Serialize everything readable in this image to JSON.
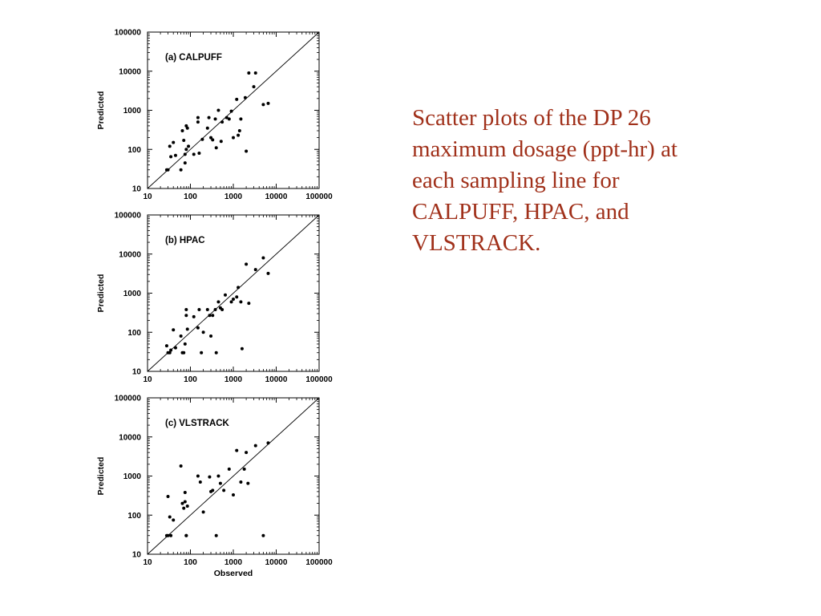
{
  "caption": "Scatter plots of the DP 26 maximum dosage (ppt-hr) at each sampling line for CALPUFF, HPAC, and VLSTRACK.",
  "colors": {
    "caption": "#a0301a",
    "points": "#000000",
    "axes": "#000000"
  },
  "chart_data": [
    {
      "type": "scatter",
      "title": "(a) CALPUFF",
      "xlabel": "",
      "ylabel": "Predicted",
      "xscale": "log",
      "yscale": "log",
      "xlim": [
        10,
        100000
      ],
      "ylim": [
        10,
        100000
      ],
      "tick_labels": [
        "10",
        "100",
        "1000",
        "10000",
        "100000"
      ],
      "reference_line": "1:1",
      "grid": false,
      "x": [
        28,
        30,
        33,
        35,
        40,
        45,
        60,
        65,
        70,
        75,
        75,
        80,
        80,
        85,
        90,
        120,
        150,
        150,
        160,
        190,
        250,
        270,
        300,
        330,
        380,
        400,
        450,
        520,
        550,
        700,
        800,
        900,
        1000,
        1200,
        1300,
        1400,
        1500,
        1900,
        2000,
        2300,
        3000,
        3300,
        5000,
        6500
      ],
      "y": [
        30,
        30,
        120,
        65,
        150,
        70,
        30,
        300,
        170,
        45,
        75,
        100,
        400,
        350,
        120,
        75,
        500,
        650,
        80,
        180,
        350,
        650,
        200,
        175,
        600,
        110,
        1000,
        160,
        500,
        650,
        600,
        950,
        200,
        1900,
        230,
        300,
        600,
        2100,
        90,
        9000,
        4000,
        9000,
        1400,
        1500
      ]
    },
    {
      "type": "scatter",
      "title": "(b) HPAC",
      "xlabel": "",
      "ylabel": "Predicted",
      "xscale": "log",
      "yscale": "log",
      "xlim": [
        10,
        100000
      ],
      "ylim": [
        10,
        100000
      ],
      "tick_labels": [
        "10",
        "100",
        "1000",
        "10000",
        "100000"
      ],
      "reference_line": "1:1",
      "grid": false,
      "x": [
        28,
        30,
        33,
        35,
        40,
        45,
        60,
        65,
        70,
        75,
        80,
        80,
        85,
        120,
        150,
        160,
        180,
        200,
        250,
        280,
        300,
        330,
        380,
        400,
        450,
        500,
        550,
        650,
        900,
        1000,
        1200,
        1300,
        1500,
        1600,
        2000,
        2300,
        3300,
        5000,
        6500
      ],
      "y": [
        45,
        30,
        30,
        35,
        115,
        40,
        80,
        30,
        30,
        50,
        270,
        380,
        120,
        250,
        130,
        380,
        30,
        100,
        380,
        270,
        80,
        270,
        380,
        30,
        600,
        420,
        380,
        900,
        600,
        700,
        800,
        1400,
        600,
        38,
        5500,
        550,
        4000,
        8000,
        3200
      ]
    },
    {
      "type": "scatter",
      "title": "(c) VLSTRACK",
      "xlabel": "Observed",
      "ylabel": "Predicted",
      "xscale": "log",
      "yscale": "log",
      "xlim": [
        10,
        100000
      ],
      "ylim": [
        10,
        100000
      ],
      "tick_labels": [
        "10",
        "100",
        "1000",
        "10000",
        "100000"
      ],
      "reference_line": "1:1",
      "grid": false,
      "x": [
        28,
        30,
        30,
        33,
        35,
        40,
        60,
        65,
        70,
        75,
        75,
        80,
        80,
        85,
        150,
        170,
        200,
        280,
        300,
        330,
        400,
        450,
        500,
        600,
        800,
        1000,
        1200,
        1500,
        1800,
        2000,
        2200,
        3300,
        5000,
        6500
      ],
      "y": [
        30,
        30,
        300,
        90,
        30,
        75,
        1800,
        200,
        150,
        380,
        220,
        30,
        30,
        170,
        1000,
        700,
        120,
        950,
        400,
        430,
        30,
        1000,
        650,
        430,
        1500,
        330,
        4500,
        700,
        1500,
        4000,
        650,
        6000,
        30,
        7000
      ]
    }
  ]
}
